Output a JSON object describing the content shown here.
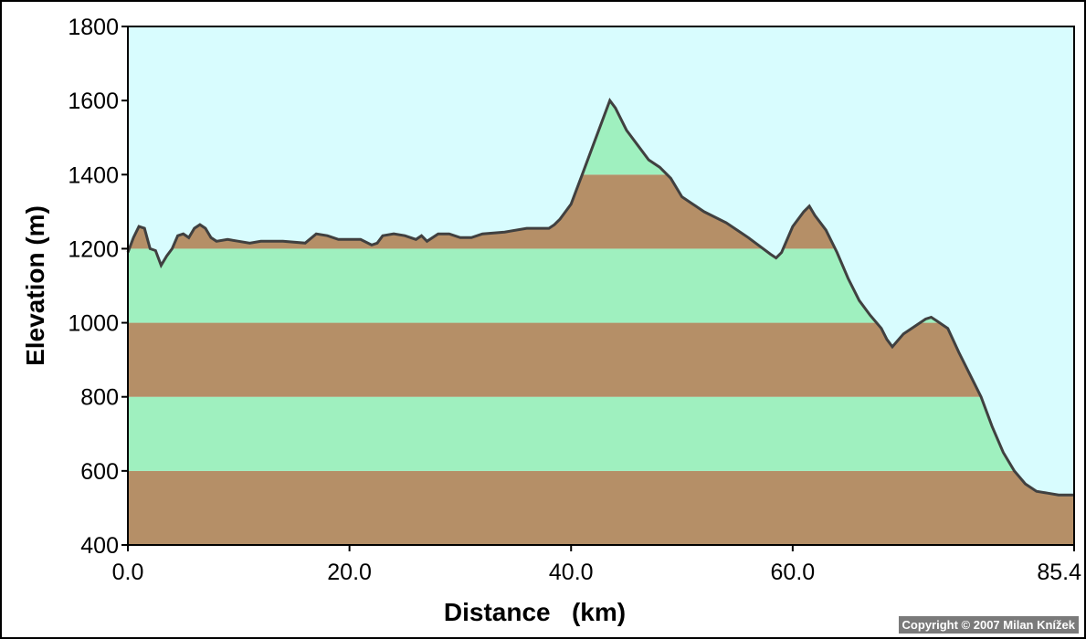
{
  "chart_data": {
    "type": "area",
    "xlabel": "Distance   (km)",
    "ylabel": "Elevation (m)",
    "xlim": [
      0,
      85.4
    ],
    "ylim": [
      400,
      1800
    ],
    "x_ticks": [
      "0.0",
      "20.0",
      "40.0",
      "60.0",
      "85.4"
    ],
    "x_tick_values": [
      0,
      20,
      40,
      60,
      85.4
    ],
    "y_ticks": [
      "400",
      "600",
      "800",
      "1000",
      "1200",
      "1400",
      "1600",
      "1800"
    ],
    "y_tick_values": [
      400,
      600,
      800,
      1000,
      1200,
      1400,
      1600,
      1800
    ],
    "grid": false,
    "band_interval": 200,
    "colors": {
      "sky": "#d8fcfe",
      "band_brown": "#b58f67",
      "band_green": "#9ff0bf",
      "outline": "#404040"
    },
    "series": [
      {
        "x": [
          0,
          0.5,
          1.0,
          1.5,
          2.0,
          2.5,
          3.0,
          3.5,
          4.0,
          4.5,
          5.0,
          5.5,
          6.0,
          6.5,
          7.0,
          7.5,
          8.0,
          9.0,
          10.0,
          11.0,
          12.0,
          14.0,
          16.0,
          17.0,
          18.0,
          19.0,
          20.0,
          21.0,
          22.0,
          22.5,
          23.0,
          24.0,
          25.0,
          26.0,
          26.5,
          27.0,
          28.0,
          29.0,
          30.0,
          31.0,
          32.0,
          34.0,
          36.0,
          38.0,
          38.5,
          39.0,
          40.0,
          41.0,
          42.0,
          43.0,
          43.5,
          44.0,
          45.0,
          46.0,
          47.0,
          48.0,
          49.0,
          50.0,
          51.0,
          52.0,
          54.0,
          56.0,
          58.0,
          58.5,
          59.0,
          60.0,
          61.0,
          61.5,
          62.0,
          63.0,
          64.0,
          65.0,
          66.0,
          67.0,
          68.0,
          68.5,
          69.0,
          70.0,
          71.0,
          72.0,
          72.5,
          73.0,
          74.0,
          75.0,
          76.0,
          77.0,
          78.0,
          79.0,
          80.0,
          81.0,
          82.0,
          83.0,
          84.0,
          85.0,
          85.4
        ],
        "y": [
          1190,
          1230,
          1260,
          1255,
          1200,
          1195,
          1155,
          1180,
          1200,
          1235,
          1240,
          1230,
          1255,
          1265,
          1255,
          1230,
          1220,
          1225,
          1220,
          1215,
          1220,
          1220,
          1215,
          1240,
          1235,
          1225,
          1225,
          1225,
          1210,
          1215,
          1235,
          1240,
          1235,
          1225,
          1235,
          1220,
          1240,
          1240,
          1230,
          1230,
          1240,
          1245,
          1255,
          1255,
          1265,
          1280,
          1320,
          1400,
          1480,
          1560,
          1600,
          1580,
          1520,
          1480,
          1440,
          1420,
          1390,
          1340,
          1320,
          1300,
          1270,
          1230,
          1185,
          1175,
          1190,
          1260,
          1300,
          1315,
          1290,
          1250,
          1190,
          1120,
          1060,
          1020,
          985,
          955,
          935,
          970,
          990,
          1010,
          1015,
          1005,
          985,
          920,
          860,
          800,
          720,
          650,
          600,
          565,
          545,
          540,
          535,
          535,
          535
        ]
      }
    ]
  },
  "footer": {
    "copyright": "Copyright © 2007 Milan Knížek"
  }
}
